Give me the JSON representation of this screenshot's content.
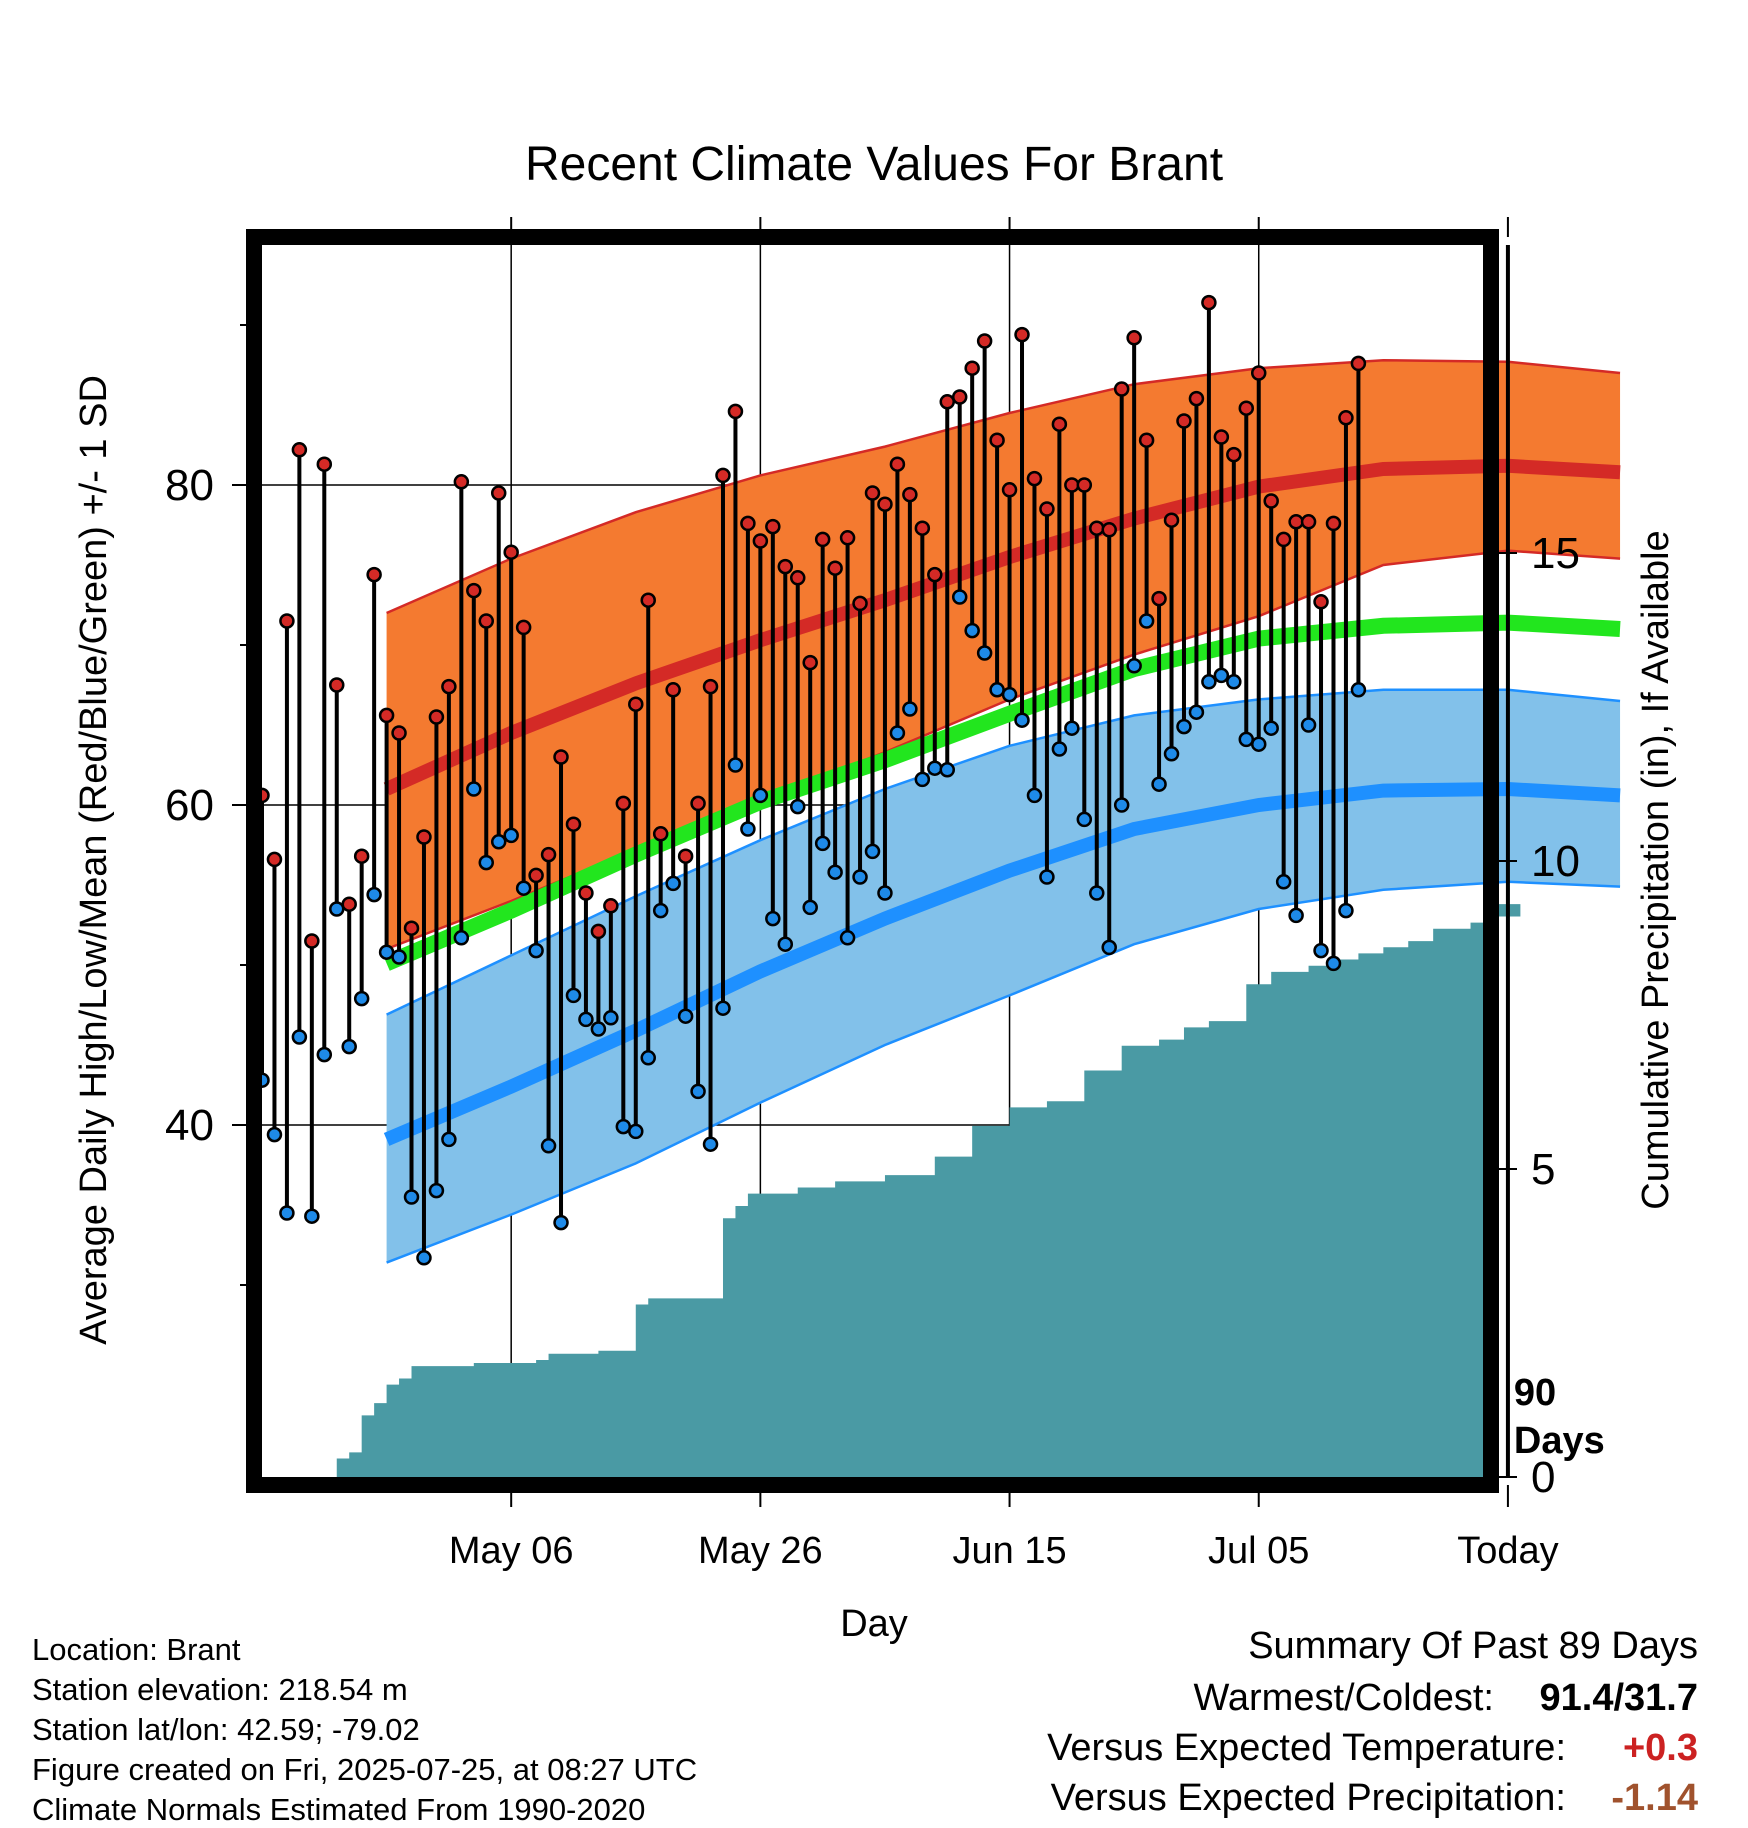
{
  "chart_data": {
    "type": "line",
    "title": "Recent Climate Values For Brant",
    "xlabel": "Day",
    "ylabel": "Average Daily High/Low/Mean (Red/Blue/Green) +/- 1 SD",
    "y2label": "Cumulative Precipitation (in), If Available",
    "x_range_days": [
      -89,
      9
    ],
    "ylim": [
      18,
      95
    ],
    "y2lim": [
      0,
      20
    ],
    "yticks": [
      40,
      60,
      80
    ],
    "y2ticks": [
      0,
      5,
      10,
      15
    ],
    "xticks": [
      {
        "day": -69,
        "label": "May 06"
      },
      {
        "day": -49,
        "label": "May 26"
      },
      {
        "day": -29,
        "label": "Jun 15"
      },
      {
        "day": -9,
        "label": "Jul 05"
      },
      {
        "day": 11,
        "label": "Today"
      }
    ],
    "today_marker": {
      "day": 11,
      "label_line1": "90",
      "label_line2": "Days"
    },
    "colors": {
      "high_band": "#f47a30",
      "high_line": "#d42a26",
      "mean_line": "#22e61e",
      "low_band": "#82c1ea",
      "low_line": "#1e90ff",
      "precip": "#4a9aa4",
      "high_dot": "#d42a26",
      "low_dot": "#1e8ae8"
    },
    "normals": {
      "days": [
        -79,
        -69,
        -59,
        -49,
        -39,
        -29,
        -19,
        -9,
        1,
        11,
        20
      ],
      "high_mean": [
        61,
        64.5,
        67.6,
        70.3,
        72.8,
        75.5,
        77.9,
        79.9,
        81.0,
        81.2,
        80.8
      ],
      "high_sd_upper": [
        72,
        75.4,
        78.3,
        80.6,
        82.4,
        84.5,
        86.3,
        87.3,
        87.8,
        87.7,
        87.0
      ],
      "high_sd_lower": [
        51,
        54,
        57.2,
        60.3,
        63.3,
        66.6,
        69.4,
        71.8,
        75.0,
        75.9,
        75.4
      ],
      "mean": [
        50.1,
        53.4,
        56.9,
        60.2,
        62.8,
        65.7,
        68.5,
        70.4,
        71.2,
        71.4,
        71.0
      ],
      "low_mean": [
        39.1,
        42.4,
        45.9,
        49.6,
        52.9,
        55.9,
        58.5,
        60.0,
        60.9,
        61.0,
        60.6
      ],
      "low_sd_upper": [
        46.9,
        50.6,
        54.3,
        57.8,
        61.0,
        63.7,
        65.6,
        66.6,
        67.2,
        67.2,
        66.5
      ],
      "low_sd_lower": [
        31.4,
        34.4,
        37.6,
        41.4,
        45.0,
        48.1,
        51.3,
        53.5,
        54.7,
        55.2,
        54.9
      ]
    },
    "daily_high": [
      60.6,
      56.6,
      71.5,
      82.2,
      51.5,
      81.3,
      67.5,
      53.8,
      56.8,
      74.4,
      65.6,
      64.5,
      52.3,
      58.0,
      65.5,
      67.4,
      80.2,
      73.4,
      71.5,
      79.5,
      75.8,
      71.1,
      55.6,
      56.9,
      63.0,
      58.8,
      54.5,
      52.1,
      53.7,
      60.1,
      66.3,
      72.8,
      58.2,
      67.2,
      56.8,
      60.1,
      67.4,
      80.6,
      84.6,
      77.6,
      76.5,
      77.4,
      74.9,
      74.2,
      68.9,
      76.6,
      74.8,
      76.7,
      72.6,
      79.5,
      78.8,
      81.3,
      79.4,
      77.3,
      74.4,
      85.2,
      85.5,
      87.3,
      89.0,
      82.8,
      79.7,
      89.4,
      80.4,
      78.5,
      83.8,
      80.0,
      80.0,
      77.3,
      77.2,
      86.0,
      89.2,
      82.8,
      72.9,
      77.8,
      84.0,
      85.4,
      91.4,
      83.0,
      81.9,
      84.8,
      87.0,
      79.0,
      76.6,
      77.7,
      77.7,
      72.7,
      77.6,
      84.2,
      87.6
    ],
    "daily_low": [
      42.8,
      39.4,
      34.5,
      45.5,
      34.3,
      44.4,
      53.5,
      44.9,
      47.9,
      54.4,
      50.8,
      50.5,
      35.5,
      31.7,
      35.9,
      39.1,
      51.7,
      61.0,
      56.4,
      57.7,
      58.1,
      54.8,
      50.9,
      38.7,
      33.9,
      48.1,
      46.6,
      46.0,
      46.7,
      39.9,
      39.6,
      44.2,
      53.4,
      55.1,
      46.8,
      42.1,
      38.8,
      47.3,
      62.5,
      58.5,
      60.6,
      52.9,
      51.3,
      59.9,
      53.6,
      57.6,
      55.8,
      51.7,
      55.5,
      57.1,
      54.5,
      64.5,
      66.0,
      61.6,
      62.3,
      62.2,
      73.0,
      70.9,
      69.5,
      67.2,
      66.9,
      65.3,
      60.6,
      55.5,
      63.5,
      64.8,
      59.1,
      54.5,
      51.1,
      60.0,
      68.7,
      71.5,
      61.3,
      63.2,
      64.9,
      65.8,
      67.7,
      68.1,
      67.7,
      64.1,
      63.8,
      64.8,
      55.2,
      53.1,
      65.0,
      50.9,
      50.1,
      53.4,
      67.2
    ],
    "cumulative_precip": {
      "days": [
        -84,
        -83,
        -82,
        -81,
        -80,
        -79,
        -78,
        -77,
        -74,
        -72,
        -71,
        -67,
        -66,
        -62,
        -59,
        -58,
        -56,
        -52,
        -51,
        -50,
        -49,
        -46,
        -43,
        -39,
        -37,
        -35,
        -32,
        -29,
        -26,
        -23,
        -20,
        -17,
        -15,
        -13,
        -10,
        -8,
        -5,
        -3,
        -1,
        1,
        3,
        5,
        8,
        10,
        12,
        14
      ],
      "values": [
        0,
        0.3,
        0.4,
        1.0,
        1.2,
        1.5,
        1.6,
        1.8,
        1.8,
        1.85,
        1.85,
        1.9,
        2.0,
        2.05,
        2.8,
        2.9,
        2.9,
        4.2,
        4.4,
        4.6,
        4.6,
        4.7,
        4.8,
        4.9,
        4.9,
        5.2,
        5.7,
        6.0,
        6.1,
        6.6,
        7.0,
        7.1,
        7.3,
        7.4,
        8.0,
        8.2,
        8.3,
        8.4,
        8.5,
        8.6,
        8.7,
        8.9,
        9.0,
        9.1,
        9.3,
        9.3
      ]
    }
  },
  "footer": {
    "location": "Location: Brant",
    "elevation": "Station elevation: 218.54 m",
    "latlon": "Station lat/lon: 42.59; -79.02",
    "created": "Figure created on Fri, 2025-07-25, at 08:27 UTC",
    "normals": "Climate Normals Estimated From 1990-2020"
  },
  "summary": {
    "heading": "Summary Of Past 89 Days",
    "warmest_label": "Warmest/Coldest:",
    "warmest_value": "91.4/31.7",
    "temp_label": "Versus Expected Temperature:",
    "temp_value": "+0.3",
    "temp_color": "#cc2222",
    "precip_label": "Versus Expected Precipitation:",
    "precip_value": "-1.14",
    "precip_color": "#a0522d"
  }
}
